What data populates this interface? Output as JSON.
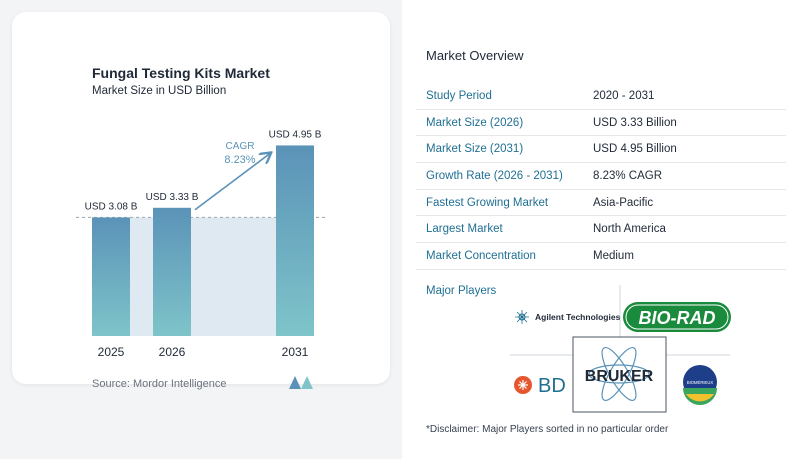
{
  "chart_data": {
    "type": "bar",
    "title": "Fungal Testing Kits Market",
    "subtitle": "Market Size in USD Billion",
    "categories": [
      "2025",
      "2026",
      "2031"
    ],
    "values": [
      3.08,
      3.33,
      4.95
    ],
    "value_labels": [
      "USD 3.08 B",
      "USD 3.33 B",
      "USD 4.95 B"
    ],
    "cagr_label": "CAGR",
    "cagr_value": "8.23%",
    "reference_line_value": 3.08,
    "ylim": [
      0,
      5
    ],
    "bar_color_top": "#5b93b8",
    "bar_color_bottom": "#7ec4c9",
    "xlabel": "",
    "ylabel": ""
  },
  "source": "Source:  Mordor Intelligence",
  "overview": {
    "title": "Market Overview",
    "rows": [
      {
        "key": "Study Period",
        "value": "2020 - 2031"
      },
      {
        "key": "Market Size (2026)",
        "value": "USD 3.33 Billion"
      },
      {
        "key": "Market Size (2031)",
        "value": "USD 4.95 Billion"
      },
      {
        "key": "Growth Rate (2026 - 2031)",
        "value": "8.23% CAGR"
      },
      {
        "key": "Fastest Growing Market",
        "value": "Asia-Pacific"
      },
      {
        "key": "Largest Market",
        "value": "North America"
      },
      {
        "key": "Market Concentration",
        "value": "Medium"
      }
    ],
    "players_title": "Major Players",
    "players": [
      "Agilent Technologies",
      "BIO-RAD",
      "BD",
      "BRUKER",
      "BIOMÉRIEUX"
    ],
    "disclaimer": "*Disclaimer: Major Players sorted in no particular order"
  },
  "colors": {
    "accent": "#1f6f93",
    "bar": "#5b93b8",
    "teal": "#7ec4c9",
    "biorad": "#1a8a3c",
    "bd": "#e4572e"
  }
}
